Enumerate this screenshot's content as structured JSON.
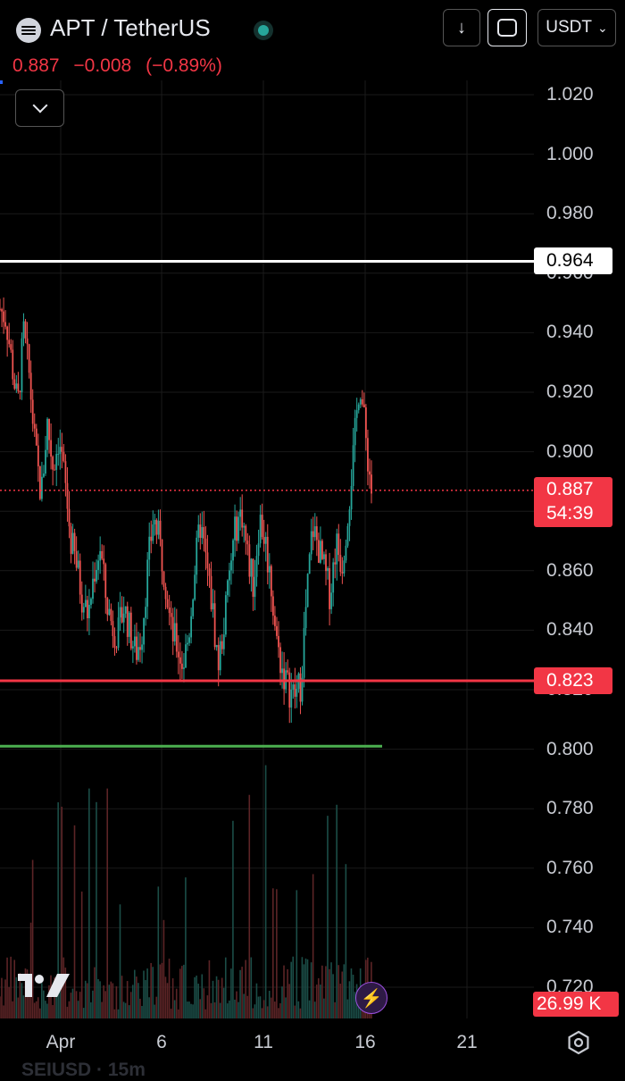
{
  "header": {
    "symbol_icon": "exchange-logo-icon",
    "title": "APT / TetherUS",
    "live_status_color": "#26a69a",
    "last_price": "0.887",
    "change": "−0.008",
    "change_pct": "(−0.89%)",
    "change_color": "#f23645",
    "download_icon": "↓",
    "fullscreen_icon": "fullscreen-icon",
    "currency": "USDT",
    "currency_chevron": "⌄",
    "collapse_icon": "chevron-down-icon"
  },
  "price_axis": {
    "ticks": [
      "1.020",
      "1.000",
      "0.980",
      "0.960",
      "0.940",
      "0.920",
      "0.900",
      "0.880",
      "0.860",
      "0.840",
      "0.820",
      "0.800",
      "0.780",
      "0.760",
      "0.740",
      "0.720"
    ]
  },
  "time_axis": {
    "ticks": [
      "Apr",
      "6",
      "11",
      "16",
      "21"
    ]
  },
  "lines": {
    "resistance": {
      "label": "0.964",
      "value": 0.964,
      "color": "#ffffff"
    },
    "support": {
      "label": "0.823",
      "value": 0.823,
      "color": "#f23645"
    },
    "lower": {
      "value": 0.801,
      "color": "#4caf50"
    },
    "current": {
      "label": "0.887",
      "countdown": "54:39",
      "value": 0.887,
      "color": "#f23645"
    }
  },
  "volume": {
    "label": "26.99 K"
  },
  "footer": {
    "logo_icon": "tradingview-logo-icon",
    "bolt_icon": "⚡",
    "settings_icon": "settings-gear-icon",
    "partial_symbol": "SEIUSD · 15m"
  },
  "colors": {
    "up": "#26a69a",
    "down": "#ef5350",
    "background": "#000000",
    "grid": "#1a1a1a"
  },
  "chart_data": {
    "type": "candlestick",
    "symbol": "APT / TetherUS",
    "interval": "15m",
    "x": [
      "Apr 1",
      "Apr 2",
      "Apr 3",
      "Apr 4",
      "Apr 5",
      "Apr 6",
      "Apr 7",
      "Apr 8",
      "Apr 9",
      "Apr 10",
      "Apr 11",
      "Apr 12",
      "Apr 13",
      "Apr 14",
      "Apr 15",
      "Apr 16"
    ],
    "close": [
      0.948,
      0.918,
      0.895,
      0.905,
      0.862,
      0.843,
      0.838,
      0.862,
      0.83,
      0.828,
      0.858,
      0.872,
      0.825,
      0.86,
      0.868,
      0.887
    ],
    "ylim": [
      0.715,
      1.03
    ],
    "horizontal_levels": [
      0.964,
      0.823,
      0.801
    ],
    "current_price": 0.887,
    "volume_last": "26.99 K"
  }
}
